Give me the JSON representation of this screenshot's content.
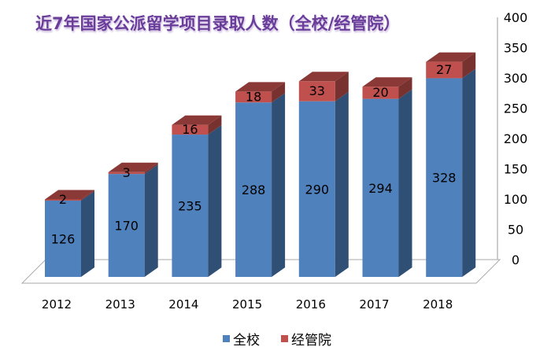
{
  "chart_data": {
    "type": "bar",
    "stacked": true,
    "three_d": true,
    "title": "近7年国家公派留学项目录取人数（全校/经管院）",
    "categories": [
      "2012",
      "2013",
      "2014",
      "2015",
      "2016",
      "2017",
      "2018"
    ],
    "series": [
      {
        "name": "全校",
        "values": [
          126,
          170,
          235,
          288,
          290,
          294,
          328
        ],
        "color": "#4f81bd"
      },
      {
        "name": "经管院",
        "values": [
          2,
          3,
          16,
          18,
          33,
          20,
          27
        ],
        "color": "#c0504d"
      }
    ],
    "ylim": [
      0,
      400
    ],
    "yticks": [
      0,
      50,
      100,
      150,
      200,
      250,
      300,
      350,
      400
    ],
    "y_axis_side": "right",
    "grid": false,
    "legend": "bottom",
    "title_color": "#6a3d9a"
  }
}
